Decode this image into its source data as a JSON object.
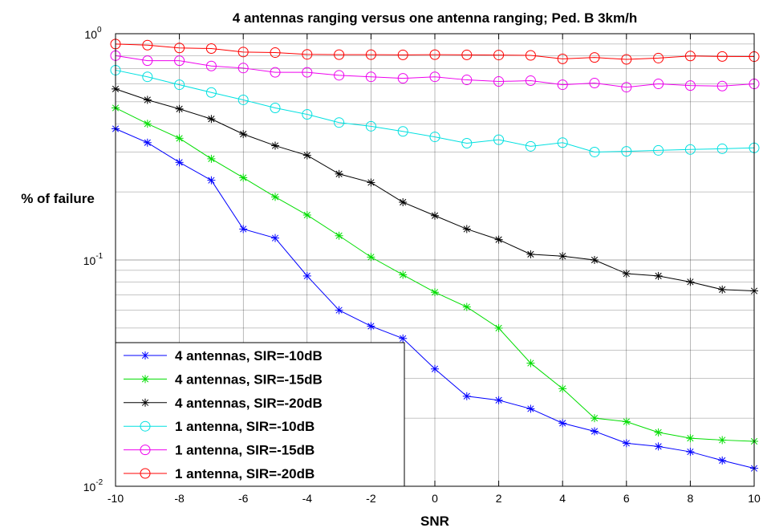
{
  "chart_data": {
    "type": "line",
    "title": "4 antennas ranging versus one antenna ranging; Ped. B 3km/h",
    "xlabel": "SNR",
    "ylabel": "% of failure",
    "xlim": [
      -10,
      10
    ],
    "ylim": [
      0.01,
      1
    ],
    "yscale": "log",
    "grid": true,
    "legend_position": "bottom-left",
    "x": [
      -10,
      -9,
      -8,
      -7,
      -6,
      -5,
      -4,
      -3,
      -2,
      -1,
      0,
      1,
      2,
      3,
      4,
      5,
      6,
      7,
      8,
      9,
      10
    ],
    "xticks": [
      "-10",
      "-8",
      "-6",
      "-4",
      "-2",
      "0",
      "2",
      "4",
      "6",
      "8",
      "10"
    ],
    "yticks": [
      {
        "base": "10",
        "exp": "0"
      },
      {
        "base": "10",
        "exp": "-1"
      },
      {
        "base": "10",
        "exp": "-2"
      }
    ],
    "series": [
      {
        "name": "4 antennas, SIR=-10dB",
        "color": "#0000ff",
        "marker": "star",
        "values": [
          0.38,
          0.33,
          0.27,
          0.225,
          0.137,
          0.125,
          0.085,
          0.06,
          0.051,
          0.045,
          0.033,
          0.025,
          0.024,
          0.022,
          0.019,
          0.0175,
          0.0155,
          0.015,
          0.0142,
          0.013,
          0.012
        ]
      },
      {
        "name": "4 antennas, SIR=-15dB",
        "color": "#00dd00",
        "marker": "star",
        "values": [
          0.47,
          0.4,
          0.345,
          0.28,
          0.231,
          0.19,
          0.158,
          0.128,
          0.103,
          0.086,
          0.072,
          0.062,
          0.05,
          0.035,
          0.027,
          0.02,
          0.0193,
          0.0173,
          0.0163,
          0.016,
          0.0158
        ]
      },
      {
        "name": "4 antennas, SIR=-20dB",
        "color": "#000000",
        "marker": "star",
        "values": [
          0.57,
          0.51,
          0.465,
          0.42,
          0.36,
          0.32,
          0.29,
          0.24,
          0.22,
          0.18,
          0.157,
          0.137,
          0.123,
          0.106,
          0.104,
          0.1,
          0.087,
          0.085,
          0.08,
          0.074,
          0.073
        ]
      },
      {
        "name": "1 antenna, SIR=-10dB",
        "color": "#00e0e0",
        "marker": "circle",
        "values": [
          0.69,
          0.645,
          0.595,
          0.55,
          0.51,
          0.47,
          0.44,
          0.405,
          0.39,
          0.37,
          0.35,
          0.328,
          0.34,
          0.318,
          0.33,
          0.3,
          0.302,
          0.305,
          0.308,
          0.31,
          0.313
        ]
      },
      {
        "name": "1 antenna, SIR=-15dB",
        "color": "#ee00ee",
        "marker": "circle",
        "values": [
          0.8,
          0.76,
          0.76,
          0.72,
          0.705,
          0.675,
          0.675,
          0.655,
          0.645,
          0.635,
          0.645,
          0.625,
          0.615,
          0.62,
          0.595,
          0.605,
          0.58,
          0.6,
          0.59,
          0.587,
          0.6
        ]
      },
      {
        "name": "1 antenna, SIR=-20dB",
        "color": "#ff0000",
        "marker": "circle",
        "values": [
          0.9,
          0.89,
          0.865,
          0.86,
          0.83,
          0.825,
          0.81,
          0.808,
          0.808,
          0.806,
          0.808,
          0.806,
          0.805,
          0.802,
          0.774,
          0.785,
          0.77,
          0.78,
          0.797,
          0.793,
          0.792
        ]
      }
    ]
  }
}
